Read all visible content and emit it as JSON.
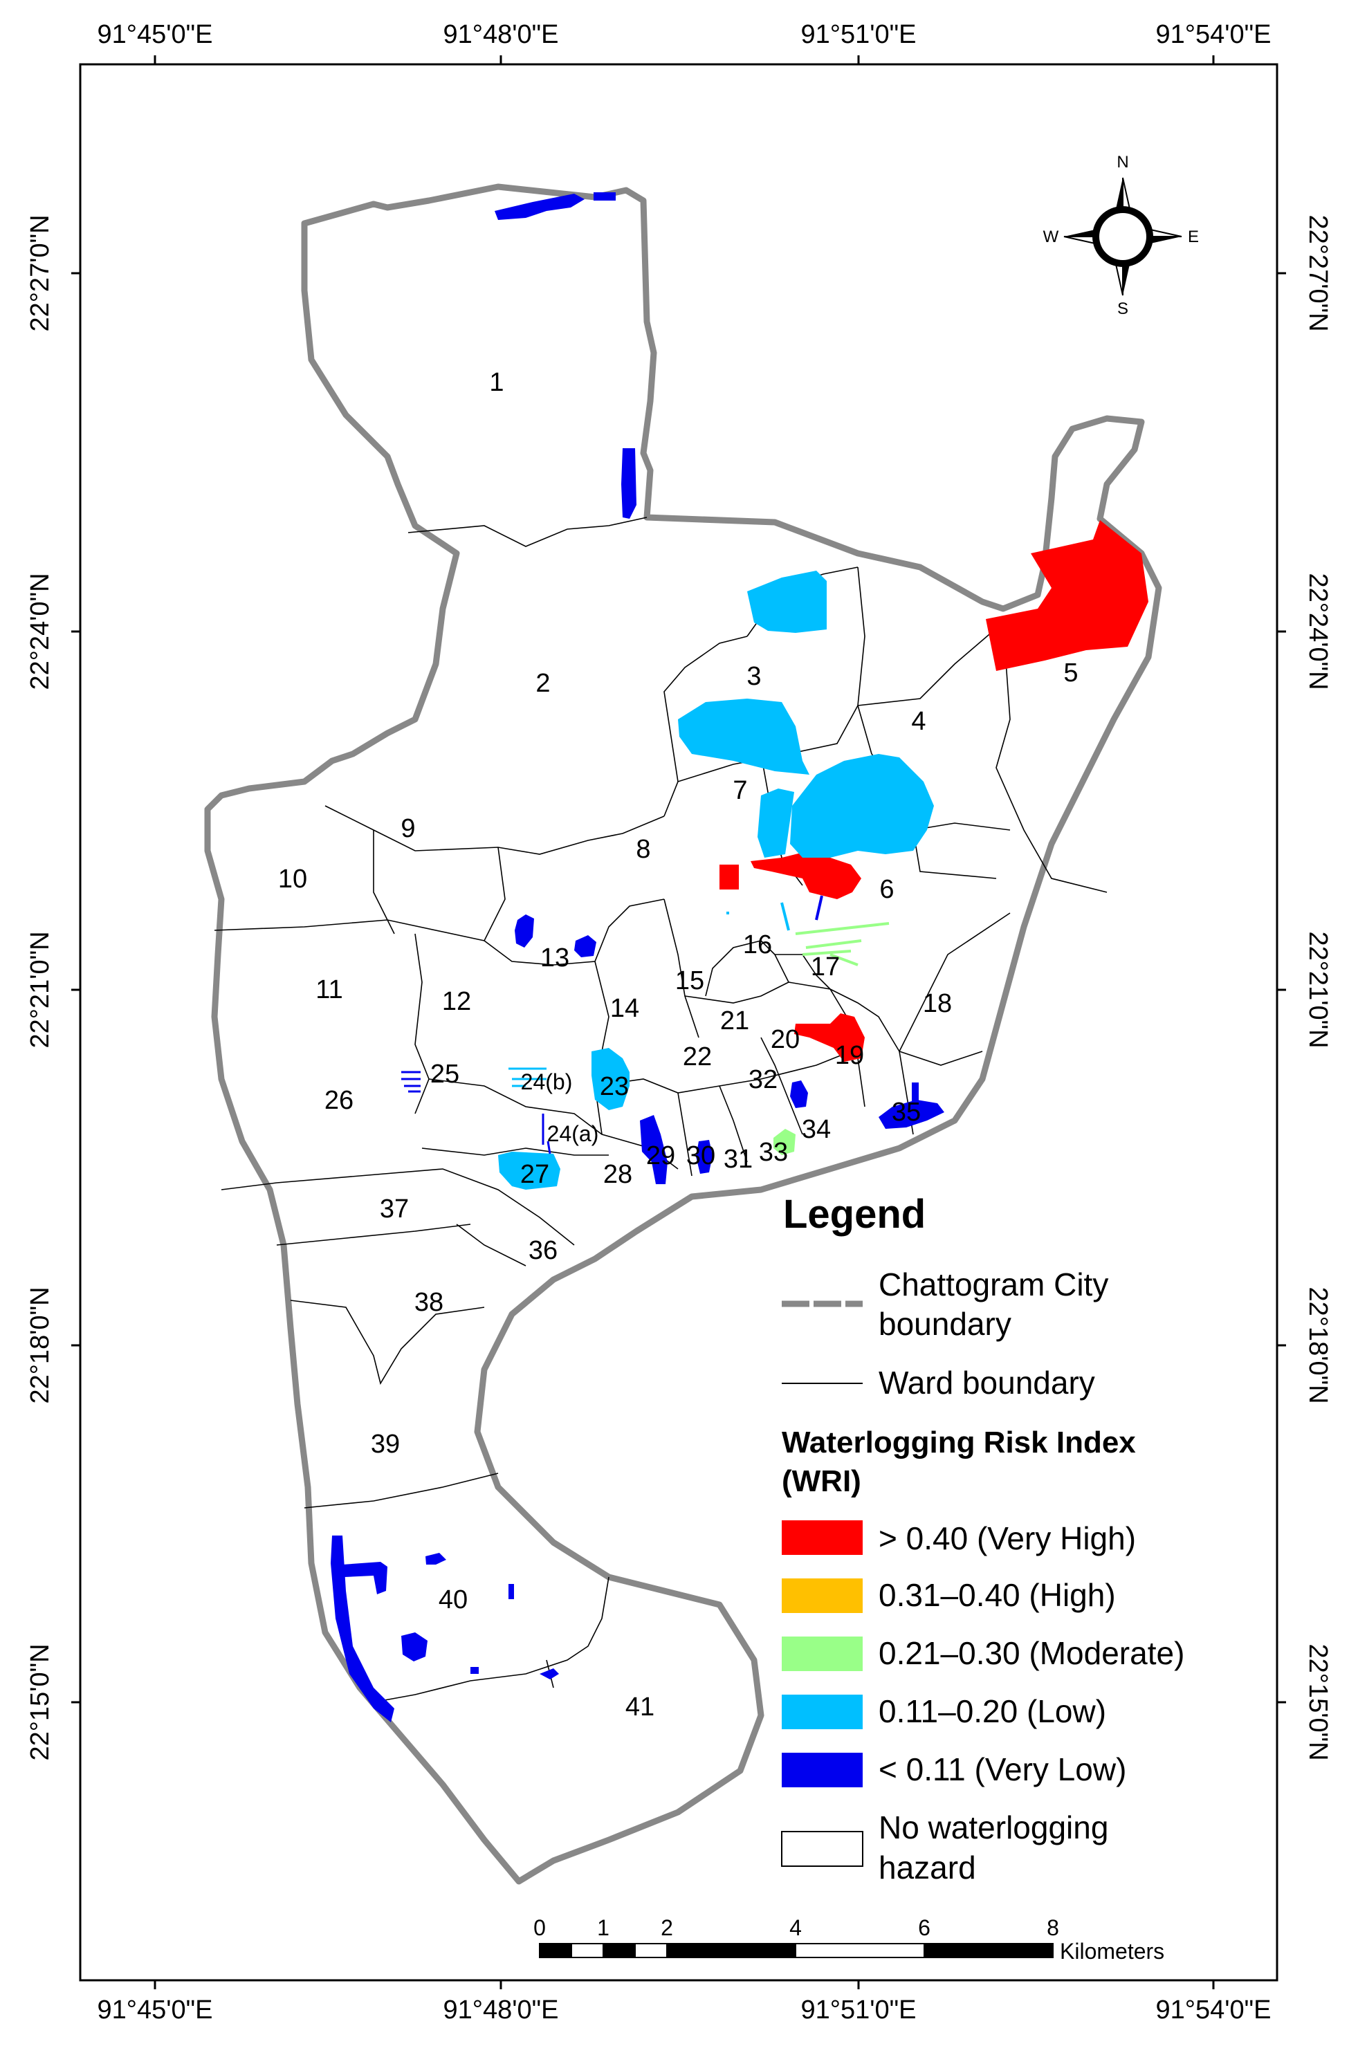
{
  "graticule": {
    "lon_labels": [
      "91°45'0\"E",
      "91°48'0\"E",
      "91°51'0\"E",
      "91°54'0\"E"
    ],
    "lat_labels": [
      "22°27'0\"N",
      "22°24'0\"N",
      "22°21'0\"N",
      "22°18'0\"N",
      "22°15'0\"N"
    ]
  },
  "north_arrow": {
    "n": "N",
    "s": "S",
    "e": "E",
    "w": "W"
  },
  "wards": [
    "1",
    "2",
    "3",
    "4",
    "5",
    "6",
    "7",
    "8",
    "9",
    "10",
    "11",
    "12",
    "13",
    "14",
    "15",
    "16",
    "17",
    "18",
    "19",
    "20",
    "21",
    "22",
    "23",
    "24(a)",
    "24(b)",
    "25",
    "26",
    "27",
    "28",
    "29",
    "30",
    "31",
    "32",
    "33",
    "34",
    "35",
    "36",
    "37",
    "38",
    "39",
    "40",
    "41"
  ],
  "legend": {
    "title": "Legend",
    "boundary_line": "Chattogram City\nboundary",
    "boundary_line_1": "Chattogram City",
    "boundary_line_2": "boundary",
    "ward_line": "Ward boundary",
    "wri_title_1": "Waterlogging Risk Index",
    "wri_title_2": "(WRI)",
    "classes": [
      {
        "label": "> 0.40 (Very High)",
        "color": "#ff0000"
      },
      {
        "label": "0.31–0.40 (High)",
        "color": "#ffc000"
      },
      {
        "label": "0.21–0.30 (Moderate)",
        "color": "#99ff88"
      },
      {
        "label": "0.11–0.20 (Low)",
        "color": "#00bfff"
      },
      {
        "label": "< 0.11 (Very Low)",
        "color": "#0000ee"
      }
    ],
    "none_1": "No waterlogging",
    "none_2": "hazard"
  },
  "scale_bar": {
    "ticks": [
      "0",
      "1",
      "2",
      "4",
      "6",
      "8"
    ],
    "unit": "Kilometers"
  }
}
